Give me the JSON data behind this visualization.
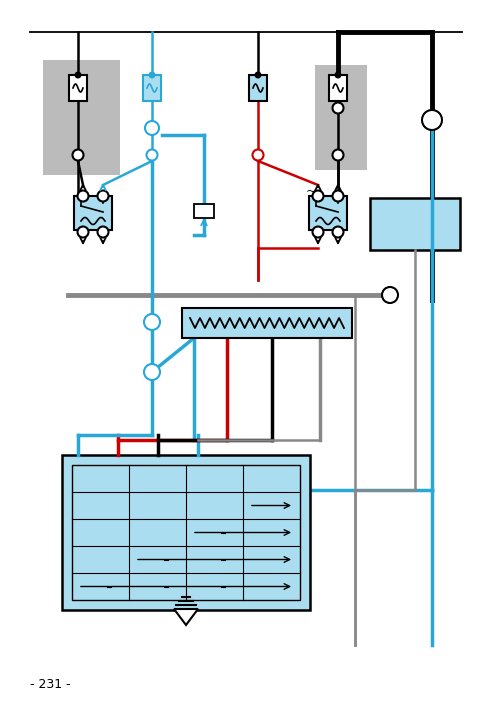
{
  "bg_color": "#ffffff",
  "BLACK": "#000000",
  "BLUE": "#29a8d8",
  "RED": "#cc0000",
  "GRAY": "#888888",
  "LGRAY": "#bbbbbb",
  "page_number": "- 231 -",
  "figsize": [
    4.96,
    7.02
  ],
  "dpi": 100
}
